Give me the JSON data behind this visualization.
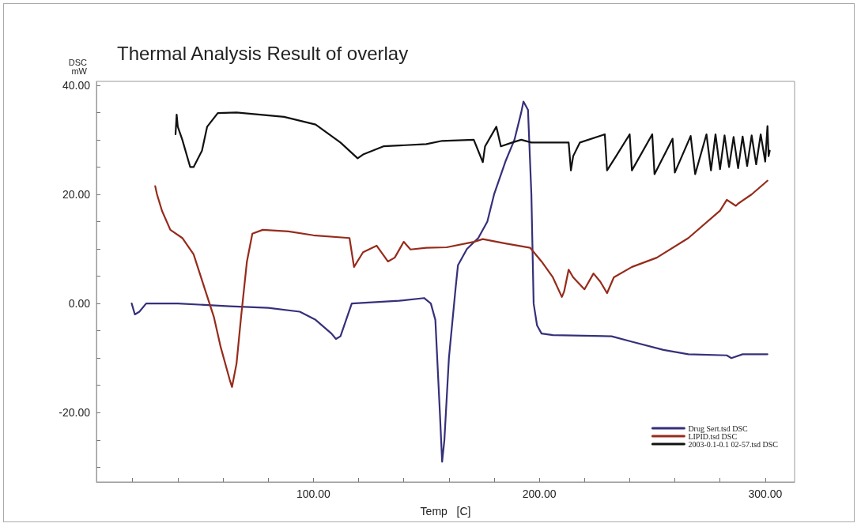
{
  "chart_data": {
    "type": "line",
    "title": "Thermal Analysis Result of overlay",
    "ylabel": "DSC\nmW",
    "xlabel": "Temp   [C]",
    "xlim": [
      4,
      313
    ],
    "xticks": [
      {
        "value": 20,
        "label": null
      },
      {
        "value": 40,
        "label": null
      },
      {
        "value": 60,
        "label": null
      },
      {
        "value": 80,
        "label": null
      },
      {
        "value": 100,
        "label": "100.00"
      },
      {
        "value": 120,
        "label": null
      },
      {
        "value": 140,
        "label": null
      },
      {
        "value": 160,
        "label": null
      },
      {
        "value": 180,
        "label": null
      },
      {
        "value": 200,
        "label": "200.00"
      },
      {
        "value": 220,
        "label": null
      },
      {
        "value": 240,
        "label": null
      },
      {
        "value": 260,
        "label": null
      },
      {
        "value": 280,
        "label": null
      },
      {
        "value": 300,
        "label": "300.00"
      }
    ],
    "ylim": [
      -32.7,
      40.7
    ],
    "yticks": [
      {
        "value": -30,
        "label": null
      },
      {
        "value": -25,
        "label": null
      },
      {
        "value": -20,
        "label": "-20.00"
      },
      {
        "value": -15,
        "label": null
      },
      {
        "value": -10,
        "label": null
      },
      {
        "value": -5,
        "label": null
      },
      {
        "value": 0,
        "label": "0.00"
      },
      {
        "value": 5,
        "label": null
      },
      {
        "value": 10,
        "label": null
      },
      {
        "value": 15,
        "label": null
      },
      {
        "value": 20,
        "label": "20.00"
      },
      {
        "value": 25,
        "label": null
      },
      {
        "value": 30,
        "label": null
      },
      {
        "value": 35,
        "label": null
      },
      {
        "value": 40,
        "label": "40.00"
      }
    ],
    "grid": false,
    "legend": "bottom right",
    "marker": "none",
    "line_style": "solid",
    "series": [
      {
        "name": "Drug Sert.tsd DSC",
        "color": "#35307a",
        "x": [
          19.6,
          21,
          23,
          26,
          40,
          63,
          80,
          94,
          101,
          108,
          110,
          112,
          117,
          138,
          149,
          152,
          154,
          156,
          157,
          158,
          160,
          163,
          164,
          168,
          173,
          177,
          180,
          185,
          189,
          192,
          193,
          195,
          196.5,
          197.5,
          199,
          201,
          206,
          232,
          241,
          255,
          266,
          283,
          285,
          290,
          301
        ],
        "values": [
          0,
          -2,
          -1.5,
          0,
          0,
          -0.5,
          -0.8,
          -1.5,
          -3,
          -5.5,
          -6.5,
          -6,
          0,
          0.5,
          1,
          0,
          -3,
          -20,
          -29,
          -25,
          -10,
          3,
          7,
          10,
          12,
          15,
          20,
          26,
          30,
          35,
          37,
          35.5,
          20,
          0,
          -4,
          -5.5,
          -5.8,
          -6,
          -7,
          -8.5,
          -9.3,
          -9.5,
          -10,
          -9.3,
          -9.3
        ]
      },
      {
        "name": "LIPID.tsd DSC",
        "color": "#962b1c",
        "x": [
          30,
          30.8,
          33,
          36.7,
          42,
          47,
          52,
          56,
          59,
          63,
          64,
          66,
          68,
          70.6,
          73,
          77.6,
          89,
          100,
          116,
          118,
          122,
          128,
          133,
          136,
          140,
          143,
          150,
          159,
          171,
          175,
          185,
          196,
          201,
          206,
          210,
          211,
          213,
          215,
          220,
          224,
          227,
          230,
          233,
          241,
          252,
          266,
          280,
          283,
          287,
          288,
          294,
          301
        ],
        "values": [
          21.5,
          20,
          17,
          13.5,
          12,
          9,
          2.6,
          -2.5,
          -8,
          -14,
          -15.3,
          -11,
          -2.5,
          7.7,
          12.8,
          13.5,
          13.2,
          12.5,
          12,
          6.7,
          9.4,
          10.6,
          7.7,
          8.4,
          11.3,
          9.9,
          10.2,
          10.3,
          11.3,
          11.8,
          11,
          10.2,
          7.7,
          4.8,
          1.2,
          2.2,
          6.2,
          4.8,
          2.6,
          5.5,
          4,
          1.9,
          4.8,
          6.7,
          8.4,
          12,
          17,
          19,
          17.9,
          18.3,
          20,
          22.5
        ]
      },
      {
        "name": "2003-0.1-0.1 02-57.tsd DSC",
        "color": "#111111",
        "x": [
          39,
          39.5,
          40,
          42,
          45.5,
          47,
          50.7,
          53,
          57.7,
          66,
          87,
          101,
          112,
          119.6,
          122,
          131,
          150,
          157,
          171,
          175,
          176,
          181,
          183,
          188,
          192,
          196.5,
          213,
          214,
          215,
          218,
          229,
          230,
          234,
          240,
          241,
          250,
          251,
          259,
          260,
          267,
          269,
          274,
          276,
          278,
          280,
          282,
          284,
          286,
          288,
          290,
          292,
          294,
          296,
          298,
          300,
          301,
          301.5,
          302
        ],
        "values": [
          31,
          34.6,
          32.4,
          30,
          25,
          25,
          28,
          32.4,
          34.9,
          35,
          34.2,
          32.8,
          29.5,
          26.6,
          27.3,
          28.8,
          29.2,
          29.8,
          30,
          25.9,
          28.8,
          32.4,
          28.8,
          29.5,
          30,
          29.5,
          29.5,
          24.4,
          27,
          29.5,
          31,
          24.4,
          27,
          31,
          24.4,
          31,
          23.7,
          30.2,
          24,
          30.7,
          23.7,
          31,
          24.4,
          31,
          24.6,
          30.8,
          25,
          30.5,
          24.8,
          30.6,
          25.2,
          30.8,
          25.5,
          31,
          26,
          32.5,
          27,
          28
        ]
      }
    ]
  }
}
